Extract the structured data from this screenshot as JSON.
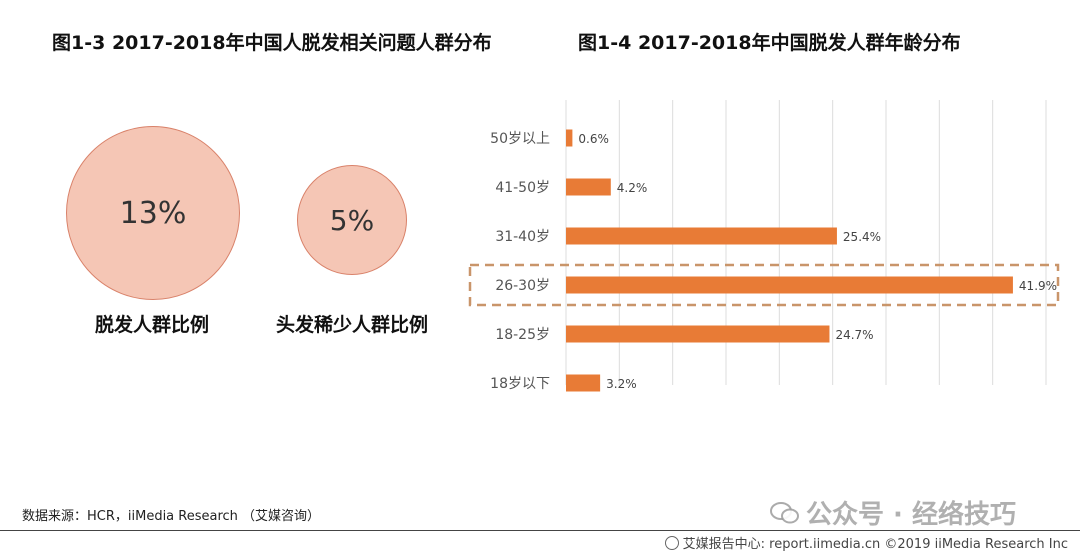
{
  "left_panel": {
    "title": "图1-3 2017-2018年中国人脱发相关问题人群分布",
    "bubbles": [
      {
        "value": "13%",
        "label": "脱发人群比例"
      },
      {
        "value": "5%",
        "label": "头发稀少人群比例"
      }
    ]
  },
  "right_panel": {
    "title": "图1-4 2017-2018年中国脱发人群年龄分布"
  },
  "chart_data": [
    {
      "type": "bubble",
      "title": "图1-3 2017-2018年中国人脱发相关问题人群分布",
      "categories": [
        "脱发人群比例",
        "头发稀少人群比例"
      ],
      "values": [
        13,
        5
      ],
      "unit": "%"
    },
    {
      "type": "bar",
      "orientation": "horizontal",
      "title": "图1-4 2017-2018年中国脱发人群年龄分布",
      "categories": [
        "50岁以上",
        "41-50岁",
        "31-40岁",
        "26-30岁",
        "18-25岁",
        "18岁以下"
      ],
      "values": [
        0.6,
        4.2,
        25.4,
        41.9,
        24.7,
        3.2
      ],
      "value_labels": [
        "0.6%",
        "4.2%",
        "25.4%",
        "41.9%",
        "24.7%",
        "3.2%"
      ],
      "highlight": "26-30岁",
      "xlim": [
        0,
        45
      ],
      "grid": true,
      "bar_color": "#e87b36"
    }
  ],
  "footer": {
    "source": "数据来源：HCR，iiMedia Research （艾媒咨询）",
    "watermark": "公众号 · 经络技巧",
    "right": "艾媒报告中心: report.iimedia.cn  ©2019  iiMedia Research  Inc"
  }
}
